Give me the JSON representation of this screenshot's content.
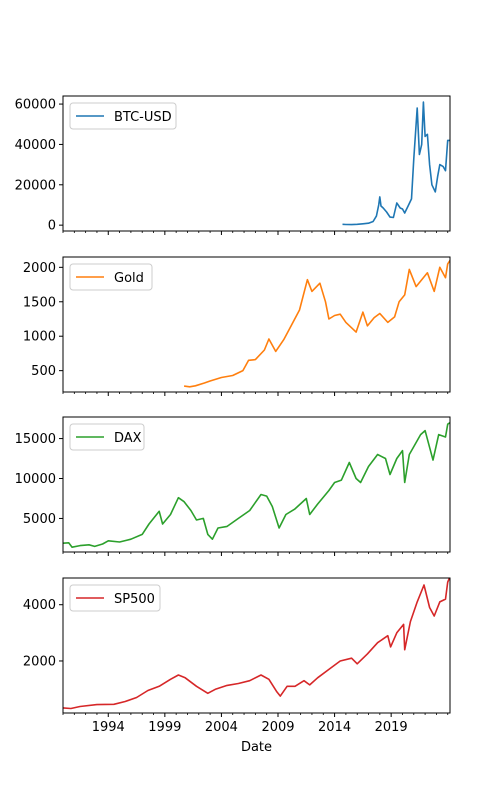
{
  "chart_data": {
    "type": "line",
    "layout": "subplots-shared-x",
    "xlabel": "Date",
    "x_tick_labels": [
      "1994",
      "1999",
      "2004",
      "2009",
      "2014",
      "2019"
    ],
    "x_tick_values": [
      1994,
      1999,
      2004,
      2009,
      2014,
      2019
    ],
    "xlim": [
      1990.0,
      2024.2
    ],
    "legend_position": "upper left",
    "panels": [
      {
        "series_name": "BTC-USD",
        "color": "#1f77b4",
        "ylim": [
          -2900,
          64000
        ],
        "y_ticks": [
          0,
          20000,
          40000,
          60000
        ],
        "y_tick_labels": [
          "0",
          "20000",
          "40000",
          "60000"
        ],
        "points": [
          [
            2014.7,
            400
          ],
          [
            2015.0,
            300
          ],
          [
            2015.5,
            250
          ],
          [
            2016.0,
            400
          ],
          [
            2016.5,
            650
          ],
          [
            2017.0,
            970
          ],
          [
            2017.4,
            1800
          ],
          [
            2017.7,
            4500
          ],
          [
            2017.9,
            10000
          ],
          [
            2018.0,
            14000
          ],
          [
            2018.1,
            9500
          ],
          [
            2018.3,
            8500
          ],
          [
            2018.6,
            6500
          ],
          [
            2018.9,
            4000
          ],
          [
            2019.2,
            3800
          ],
          [
            2019.5,
            11000
          ],
          [
            2019.8,
            8500
          ],
          [
            2020.0,
            8000
          ],
          [
            2020.2,
            6000
          ],
          [
            2020.5,
            9500
          ],
          [
            2020.8,
            13000
          ],
          [
            2021.0,
            33000
          ],
          [
            2021.3,
            58000
          ],
          [
            2021.5,
            35000
          ],
          [
            2021.7,
            40000
          ],
          [
            2021.85,
            61000
          ],
          [
            2022.0,
            44000
          ],
          [
            2022.2,
            45000
          ],
          [
            2022.4,
            30000
          ],
          [
            2022.6,
            20000
          ],
          [
            2022.9,
            16500
          ],
          [
            2023.1,
            24000
          ],
          [
            2023.3,
            30000
          ],
          [
            2023.6,
            29000
          ],
          [
            2023.8,
            27000
          ],
          [
            2024.0,
            42000
          ],
          [
            2024.2,
            42000
          ]
        ]
      },
      {
        "series_name": "Gold",
        "color": "#ff7f0e",
        "ylim": [
          190,
          2150
        ],
        "y_ticks": [
          500,
          1000,
          1500,
          2000
        ],
        "y_tick_labels": [
          "500",
          "1000",
          "1500",
          "2000"
        ],
        "points": [
          [
            2000.7,
            275
          ],
          [
            2001.2,
            265
          ],
          [
            2001.7,
            280
          ],
          [
            2002.5,
            320
          ],
          [
            2003.0,
            350
          ],
          [
            2004.0,
            400
          ],
          [
            2005.0,
            430
          ],
          [
            2005.9,
            500
          ],
          [
            2006.4,
            650
          ],
          [
            2007.0,
            660
          ],
          [
            2007.8,
            800
          ],
          [
            2008.2,
            960
          ],
          [
            2008.8,
            780
          ],
          [
            2009.5,
            950
          ],
          [
            2010.0,
            1100
          ],
          [
            2010.9,
            1380
          ],
          [
            2011.6,
            1820
          ],
          [
            2012.0,
            1650
          ],
          [
            2012.7,
            1770
          ],
          [
            2013.2,
            1500
          ],
          [
            2013.5,
            1250
          ],
          [
            2014.0,
            1300
          ],
          [
            2014.5,
            1320
          ],
          [
            2015.0,
            1200
          ],
          [
            2015.9,
            1060
          ],
          [
            2016.5,
            1350
          ],
          [
            2016.9,
            1150
          ],
          [
            2017.5,
            1270
          ],
          [
            2018.0,
            1330
          ],
          [
            2018.7,
            1200
          ],
          [
            2019.3,
            1280
          ],
          [
            2019.7,
            1500
          ],
          [
            2020.2,
            1600
          ],
          [
            2020.6,
            1970
          ],
          [
            2021.2,
            1720
          ],
          [
            2021.6,
            1800
          ],
          [
            2022.2,
            1920
          ],
          [
            2022.8,
            1650
          ],
          [
            2023.3,
            2000
          ],
          [
            2023.8,
            1850
          ],
          [
            2024.0,
            2050
          ],
          [
            2024.2,
            2100
          ]
        ]
      },
      {
        "series_name": "DAX",
        "color": "#2ca02c",
        "ylim": [
          800,
          17700
        ],
        "y_ticks": [
          5000,
          10000,
          15000
        ],
        "y_tick_labels": [
          "5000",
          "10000",
          "15000"
        ],
        "points": [
          [
            1990.0,
            1900
          ],
          [
            1990.5,
            1950
          ],
          [
            1990.8,
            1400
          ],
          [
            1991.5,
            1600
          ],
          [
            1992.3,
            1700
          ],
          [
            1992.8,
            1500
          ],
          [
            1993.5,
            1800
          ],
          [
            1994.0,
            2200
          ],
          [
            1995.0,
            2050
          ],
          [
            1996.0,
            2400
          ],
          [
            1997.0,
            3000
          ],
          [
            1997.6,
            4300
          ],
          [
            1998.5,
            5900
          ],
          [
            1998.8,
            4300
          ],
          [
            1999.5,
            5500
          ],
          [
            2000.2,
            7600
          ],
          [
            2000.7,
            7100
          ],
          [
            2001.3,
            6000
          ],
          [
            2001.8,
            4800
          ],
          [
            2002.4,
            5000
          ],
          [
            2002.8,
            3000
          ],
          [
            2003.2,
            2400
          ],
          [
            2003.7,
            3800
          ],
          [
            2004.5,
            4000
          ],
          [
            2005.5,
            5000
          ],
          [
            2006.5,
            6000
          ],
          [
            2007.5,
            8000
          ],
          [
            2008.0,
            7800
          ],
          [
            2008.5,
            6500
          ],
          [
            2009.1,
            3800
          ],
          [
            2009.7,
            5500
          ],
          [
            2010.5,
            6200
          ],
          [
            2011.5,
            7500
          ],
          [
            2011.8,
            5500
          ],
          [
            2012.5,
            6800
          ],
          [
            2013.5,
            8500
          ],
          [
            2014.0,
            9500
          ],
          [
            2014.6,
            9800
          ],
          [
            2015.3,
            12000
          ],
          [
            2015.9,
            10000
          ],
          [
            2016.3,
            9500
          ],
          [
            2017.0,
            11500
          ],
          [
            2017.8,
            13000
          ],
          [
            2018.5,
            12500
          ],
          [
            2018.9,
            10500
          ],
          [
            2019.5,
            12500
          ],
          [
            2020.0,
            13500
          ],
          [
            2020.2,
            9500
          ],
          [
            2020.6,
            13000
          ],
          [
            2021.0,
            14000
          ],
          [
            2021.6,
            15500
          ],
          [
            2022.0,
            16000
          ],
          [
            2022.7,
            12300
          ],
          [
            2023.2,
            15500
          ],
          [
            2023.8,
            15200
          ],
          [
            2024.0,
            16800
          ],
          [
            2024.2,
            17000
          ]
        ]
      },
      {
        "series_name": "SP500",
        "color": "#d62728",
        "ylim": [
          150,
          4950
        ],
        "y_ticks": [
          2000,
          4000
        ],
        "y_tick_labels": [
          "2000",
          "4000"
        ],
        "points": [
          [
            1990.0,
            330
          ],
          [
            1990.7,
            310
          ],
          [
            1991.5,
            380
          ],
          [
            1993.0,
            450
          ],
          [
            1994.5,
            460
          ],
          [
            1995.5,
            560
          ],
          [
            1996.5,
            700
          ],
          [
            1997.5,
            950
          ],
          [
            1998.5,
            1100
          ],
          [
            1999.5,
            1350
          ],
          [
            2000.2,
            1500
          ],
          [
            2000.8,
            1400
          ],
          [
            2001.8,
            1100
          ],
          [
            2002.8,
            850
          ],
          [
            2003.5,
            1000
          ],
          [
            2004.5,
            1130
          ],
          [
            2005.5,
            1200
          ],
          [
            2006.5,
            1300
          ],
          [
            2007.5,
            1500
          ],
          [
            2008.2,
            1350
          ],
          [
            2008.9,
            900
          ],
          [
            2009.2,
            750
          ],
          [
            2009.8,
            1100
          ],
          [
            2010.5,
            1100
          ],
          [
            2011.3,
            1300
          ],
          [
            2011.8,
            1150
          ],
          [
            2012.5,
            1400
          ],
          [
            2013.5,
            1700
          ],
          [
            2014.5,
            2000
          ],
          [
            2015.5,
            2100
          ],
          [
            2016.0,
            1900
          ],
          [
            2016.9,
            2250
          ],
          [
            2017.8,
            2650
          ],
          [
            2018.7,
            2900
          ],
          [
            2018.95,
            2500
          ],
          [
            2019.5,
            3000
          ],
          [
            2020.1,
            3300
          ],
          [
            2020.2,
            2400
          ],
          [
            2020.7,
            3400
          ],
          [
            2021.3,
            4100
          ],
          [
            2021.9,
            4700
          ],
          [
            2022.4,
            3900
          ],
          [
            2022.8,
            3600
          ],
          [
            2023.3,
            4100
          ],
          [
            2023.8,
            4200
          ],
          [
            2024.0,
            4800
          ],
          [
            2024.2,
            5000
          ]
        ]
      }
    ]
  }
}
